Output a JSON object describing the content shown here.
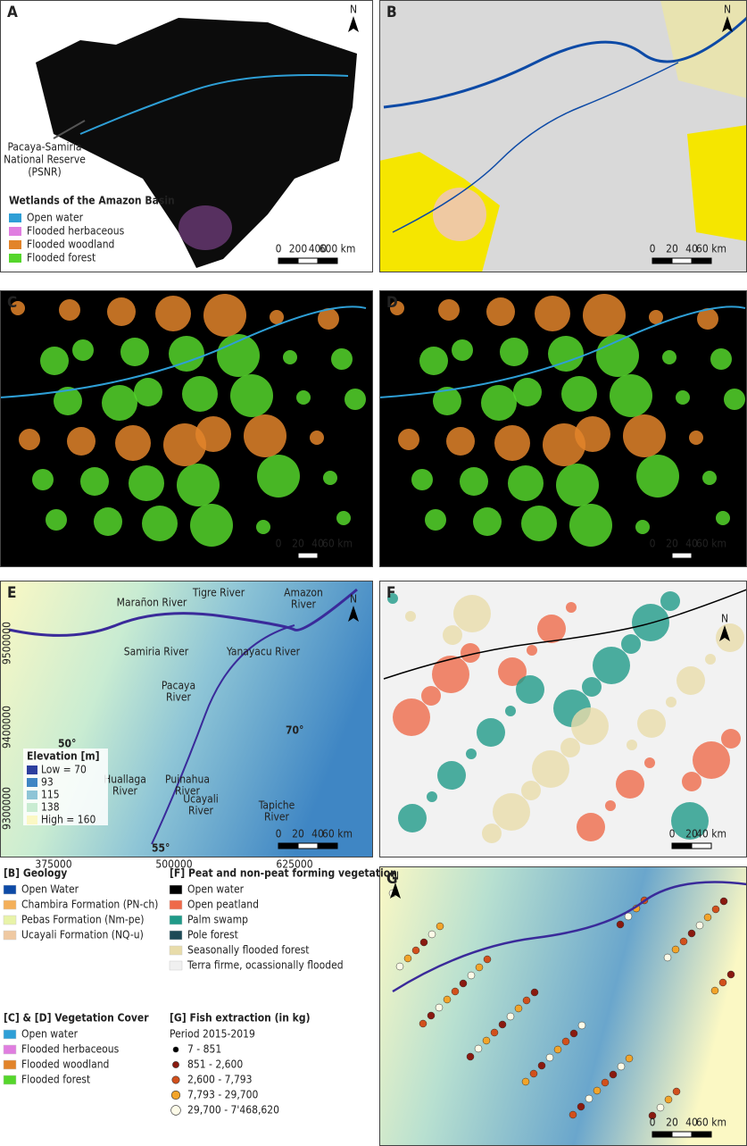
{
  "panel_a": {
    "letter": "A",
    "north": "N",
    "annotation": [
      "Pacaya-Samiria",
      "National Reserve",
      "(PSNR)"
    ],
    "legend_title": "Wetlands of the Amazon Basin",
    "legend": [
      {
        "label": "Open water",
        "color": "#2e9fd6"
      },
      {
        "label": "Flooded herbaceous",
        "color": "#e07ee0"
      },
      {
        "label": "Flooded woodland",
        "color": "#e2842a"
      },
      {
        "label": "Flooded forest",
        "color": "#55d62b"
      }
    ],
    "scale": [
      "0",
      "200",
      "400",
      "600 km"
    ]
  },
  "panel_b": {
    "letter": "B",
    "north": "N",
    "scale": [
      "0",
      "20",
      "40",
      "60 km"
    ]
  },
  "panel_c": {
    "letter": "C",
    "scale": [
      "0",
      "20",
      "40",
      "60 km"
    ]
  },
  "panel_d": {
    "letter": "D",
    "scale": [
      "0",
      "20",
      "40",
      "60 km"
    ]
  },
  "panel_e": {
    "letter": "E",
    "north": "N",
    "scale": [
      "0",
      "20",
      "40",
      "60 km"
    ],
    "rivers": [
      {
        "lines": [
          "Marañon River"
        ],
        "color": "#1d3fe0"
      },
      {
        "lines": [
          "Tigre River"
        ],
        "color": "#2e8a3a"
      },
      {
        "lines": [
          "Amazon",
          "River"
        ],
        "color": "#1d3fe0"
      },
      {
        "lines": [
          "Samiria River"
        ],
        "color": "#d0201c"
      },
      {
        "lines": [
          "Yanayacu River"
        ],
        "color": "#d0201c"
      },
      {
        "lines": [
          "Pacaya",
          "River"
        ],
        "color": "#d0201c"
      },
      {
        "lines": [
          "Huallaga",
          "River"
        ],
        "color": "#2e8a3a"
      },
      {
        "lines": [
          "Puinahua",
          "River"
        ],
        "color": "#2e8a3a"
      },
      {
        "lines": [
          "Ucayali",
          "River"
        ],
        "color": "#2e8a3a"
      },
      {
        "lines": [
          "Tapiche",
          "River"
        ],
        "color": "#2e8a3a"
      }
    ],
    "angles": [
      "50°",
      "70°",
      "55°"
    ],
    "elevation_title": "Elevation [m]",
    "elevation": [
      {
        "label": "Low = 70",
        "color": "#2c3f9e"
      },
      {
        "label": "93",
        "color": "#3f86c4"
      },
      {
        "label": "115",
        "color": "#8ec5d6"
      },
      {
        "label": "138",
        "color": "#c9ecd2"
      },
      {
        "label": "High = 160",
        "color": "#fbf8c4"
      }
    ],
    "y_labels": [
      "9500000",
      "9400000",
      "9300000"
    ],
    "x_labels": [
      "375000",
      "500000",
      "625000"
    ]
  },
  "panel_f": {
    "letter": "F",
    "north": "N",
    "scale": [
      "0",
      "20",
      "40 km"
    ]
  },
  "panel_g": {
    "letter": "G",
    "north": "N",
    "scale": [
      "0",
      "20",
      "40",
      "60 km"
    ]
  },
  "legends": [
    {
      "title": "[B] Geology",
      "items": [
        {
          "label": "Open Water",
          "color": "#0d4aa6"
        },
        {
          "label": "Chambira Formation (PN-ch)",
          "color": "#f4b05a"
        },
        {
          "label": "Pebas Formation (Nm-pe)",
          "color": "#e8f3a8"
        },
        {
          "label": "Ucayali Formation (NQ-u)",
          "color": "#efc9a2"
        }
      ]
    },
    {
      "title": "[F] Peat and non-peat forming vegetation",
      "items": [
        {
          "label": "Open water",
          "color": "#000000"
        },
        {
          "label": "Open peatland",
          "color": "#ee6a4a"
        },
        {
          "label": "Palm swamp",
          "color": "#1f9a88"
        },
        {
          "label": "Pole forest",
          "color": "#1d4a56"
        },
        {
          "label": "Seasonally flooded forest",
          "color": "#e8dcaa"
        },
        {
          "label": "Terra firme, ocassionally flooded",
          "color": "#f0f0f0"
        }
      ]
    },
    {
      "title": "[C] & [D] Vegetation Cover",
      "items": [
        {
          "label": "Open water",
          "color": "#2e9fd6"
        },
        {
          "label": "Flooded herbaceous",
          "color": "#e07ee0"
        },
        {
          "label": "Flooded woodland",
          "color": "#e2842a"
        },
        {
          "label": "Flooded forest",
          "color": "#55d62b"
        }
      ]
    },
    {
      "title": "[G] Fish extraction (in kg)",
      "subtitle": "Period 2015-2019",
      "items": [
        {
          "label": "7 - 851",
          "color": "#000000"
        },
        {
          "label": "851 - 2,600",
          "color": "#8a1a10"
        },
        {
          "label": "2,600 - 7,793",
          "color": "#d2501c"
        },
        {
          "label": "7,793 - 29,700",
          "color": "#f2a42a"
        },
        {
          "label": "29,700 - 7'468,620",
          "color": "#fdfbe8"
        }
      ]
    }
  ]
}
